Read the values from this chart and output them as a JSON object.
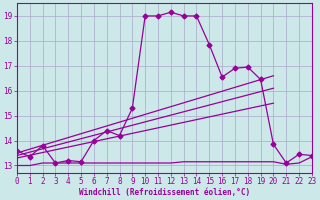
{
  "bg_color": "#cce8e8",
  "grid_color": "#aaaacc",
  "line_color": "#990099",
  "marker": "D",
  "markersize": 2.5,
  "xlabel": "Windchill (Refroidissement éolien,°C)",
  "xlim": [
    0,
    23
  ],
  "ylim": [
    12.7,
    19.5
  ],
  "yticks": [
    13,
    14,
    15,
    16,
    17,
    18,
    19
  ],
  "xticks": [
    0,
    1,
    2,
    3,
    4,
    5,
    6,
    7,
    8,
    9,
    10,
    11,
    12,
    13,
    14,
    15,
    16,
    17,
    18,
    19,
    20,
    21,
    22,
    23
  ],
  "curve1_x": [
    0,
    1,
    2,
    3,
    4,
    5,
    6,
    7,
    8,
    9,
    10,
    11,
    12,
    13,
    14,
    15,
    16,
    17,
    18,
    19,
    20,
    21,
    22,
    23
  ],
  "curve1_y": [
    13.6,
    13.35,
    13.8,
    13.1,
    13.2,
    13.15,
    14.0,
    14.4,
    14.2,
    15.3,
    19.0,
    19.0,
    19.15,
    19.0,
    19.0,
    17.85,
    16.55,
    16.9,
    16.95,
    16.45,
    13.85,
    13.1,
    13.45,
    13.4
  ],
  "line1_x": [
    0,
    20
  ],
  "line1_y": [
    13.5,
    16.6
  ],
  "line2_x": [
    0,
    20
  ],
  "line2_y": [
    13.4,
    16.1
  ],
  "line3_x": [
    0,
    20
  ],
  "line3_y": [
    13.3,
    15.5
  ],
  "line4_x": [
    0,
    1,
    2,
    3,
    4,
    5,
    6,
    7,
    8,
    9,
    10,
    11,
    12,
    13,
    14,
    15,
    16,
    17,
    18,
    19,
    20,
    21,
    22,
    23
  ],
  "line4_y": [
    13.0,
    13.0,
    13.1,
    13.1,
    13.1,
    13.1,
    13.1,
    13.1,
    13.1,
    13.1,
    13.1,
    13.1,
    13.1,
    13.15,
    13.15,
    13.15,
    13.15,
    13.15,
    13.15,
    13.15,
    13.15,
    13.05,
    13.1,
    13.35
  ]
}
